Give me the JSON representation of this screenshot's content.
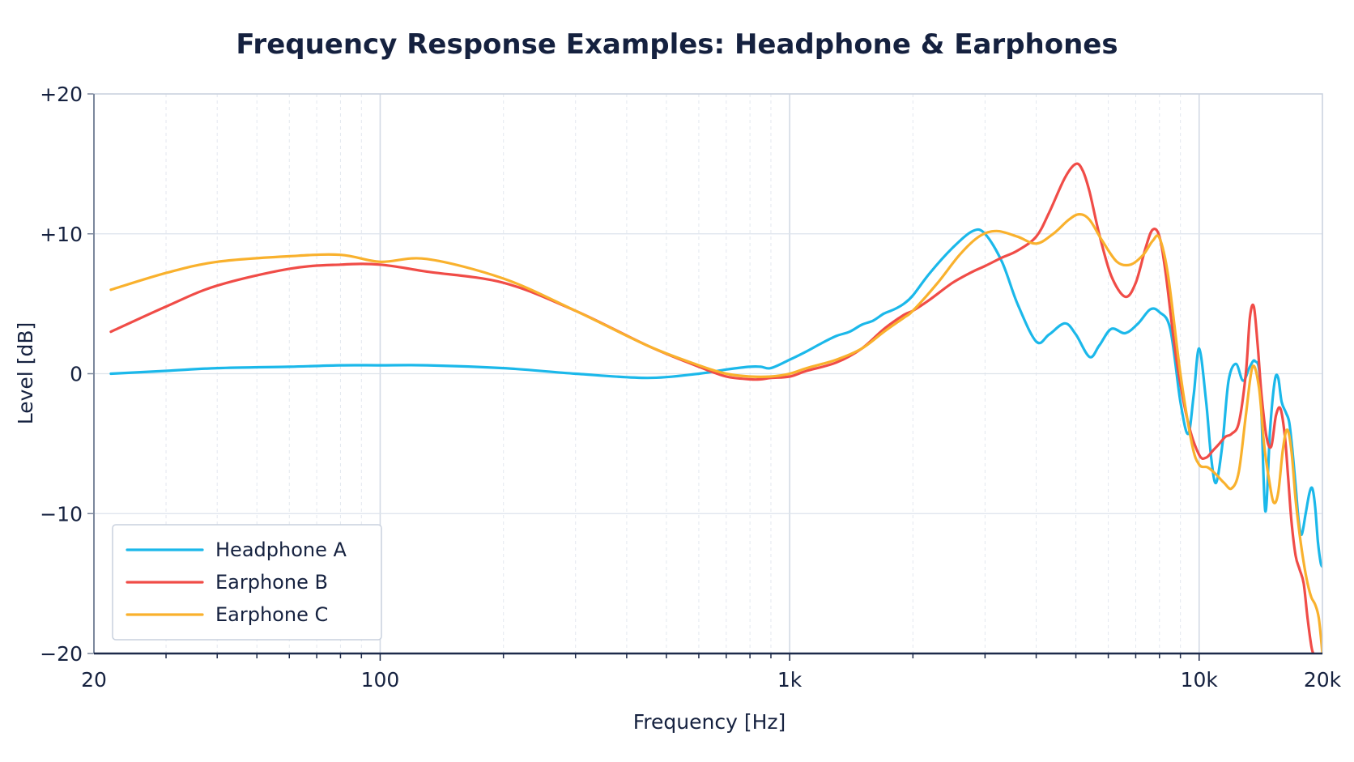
{
  "chart_data": {
    "type": "line",
    "title": "Frequency Response Examples: Headphone & Earphones",
    "xlabel": "Frequency [Hz]",
    "ylabel": "Level [dB]",
    "xscale": "log",
    "xlim": [
      20,
      20000
    ],
    "ylim": [
      -20,
      20
    ],
    "x_ticks": [
      {
        "value": 20,
        "label": "20"
      },
      {
        "value": 100,
        "label": "100"
      },
      {
        "value": 1000,
        "label": "1k"
      },
      {
        "value": 10000,
        "label": "10k"
      },
      {
        "value": 20000,
        "label": "20k"
      }
    ],
    "y_ticks": [
      {
        "value": 20,
        "label": "+20"
      },
      {
        "value": 10,
        "label": "+10"
      },
      {
        "value": 0,
        "label": "0"
      },
      {
        "value": -10,
        "label": "−10"
      },
      {
        "value": -20,
        "label": "−20"
      }
    ],
    "grid": true,
    "legend_position": "bottom-left",
    "series": [
      {
        "name": "Headphone A",
        "color": "#1bb8ea",
        "x": [
          22,
          30,
          40,
          60,
          80,
          100,
          130,
          200,
          300,
          450,
          600,
          700,
          800,
          850,
          900,
          1000,
          1100,
          1200,
          1300,
          1400,
          1500,
          1600,
          1700,
          1800,
          1900,
          2000,
          2200,
          2500,
          2800,
          3000,
          3300,
          3600,
          4000,
          4300,
          4700,
          5000,
          5400,
          5700,
          6100,
          6600,
          7100,
          7600,
          8000,
          8500,
          9000,
          9400,
          9700,
          10000,
          10400,
          10700,
          11000,
          11400,
          11800,
          12300,
          12800,
          13300,
          13700,
          14100,
          14500,
          14900,
          15300,
          15600,
          15900,
          16300,
          16600,
          16900,
          17200,
          17500,
          17800,
          18200,
          18600,
          18900,
          19200,
          19500,
          19800,
          20000
        ],
        "y": [
          0.0,
          0.2,
          0.4,
          0.5,
          0.6,
          0.6,
          0.6,
          0.4,
          0.0,
          -0.3,
          0.0,
          0.3,
          0.5,
          0.5,
          0.4,
          1.0,
          1.6,
          2.2,
          2.7,
          3.0,
          3.5,
          3.8,
          4.3,
          4.6,
          5.0,
          5.6,
          7.2,
          9.0,
          10.2,
          10.0,
          8.0,
          5.0,
          2.3,
          2.8,
          3.6,
          2.8,
          1.2,
          2.0,
          3.2,
          2.9,
          3.6,
          4.6,
          4.4,
          3.2,
          -2.0,
          -4.3,
          -1.5,
          1.8,
          -2.0,
          -6.0,
          -7.8,
          -5.0,
          -0.5,
          0.7,
          -0.5,
          0.5,
          0.9,
          -0.6,
          -9.8,
          -4.0,
          -0.5,
          -0.3,
          -2.0,
          -2.8,
          -3.5,
          -5.5,
          -8.0,
          -10.5,
          -11.5,
          -10.0,
          -8.5,
          -8.2,
          -9.5,
          -12.0,
          -13.5,
          -13.8
        ]
      },
      {
        "name": "Earphone B",
        "color": "#f04c47",
        "x": [
          22,
          30,
          40,
          60,
          80,
          100,
          130,
          200,
          300,
          450,
          600,
          700,
          800,
          850,
          900,
          1000,
          1100,
          1300,
          1500,
          1700,
          1900,
          2000,
          2200,
          2500,
          2800,
          3000,
          3300,
          3600,
          4000,
          4300,
          4700,
          5000,
          5200,
          5400,
          5700,
          6100,
          6600,
          7000,
          7400,
          7700,
          8000,
          8300,
          8800,
          9400,
          10000,
          10400,
          10800,
          11200,
          11600,
          12000,
          12500,
          13000,
          13300,
          13600,
          13900,
          14200,
          14600,
          15000,
          15400,
          15800,
          16200,
          16500,
          16800,
          17200,
          17600,
          18000,
          18400,
          18800,
          19000
        ],
        "y": [
          3.0,
          4.8,
          6.3,
          7.5,
          7.8,
          7.8,
          7.3,
          6.5,
          4.5,
          2.0,
          0.5,
          -0.2,
          -0.4,
          -0.4,
          -0.3,
          -0.2,
          0.2,
          0.8,
          1.8,
          3.2,
          4.2,
          4.5,
          5.3,
          6.5,
          7.3,
          7.7,
          8.3,
          8.8,
          9.8,
          11.5,
          14.0,
          15.0,
          14.5,
          13.0,
          10.0,
          7.0,
          5.5,
          6.5,
          9.0,
          10.3,
          9.8,
          7.0,
          1.0,
          -3.5,
          -5.8,
          -6.0,
          -5.5,
          -5.0,
          -4.5,
          -4.3,
          -3.5,
          0.0,
          4.0,
          4.8,
          2.0,
          -1.5,
          -4.5,
          -5.2,
          -3.0,
          -2.5,
          -4.5,
          -7.5,
          -10.5,
          -13.0,
          -14.0,
          -15.0,
          -17.5,
          -19.5,
          -20.0
        ]
      },
      {
        "name": "Earphone C",
        "color": "#f9b12d",
        "x": [
          22,
          30,
          40,
          60,
          80,
          100,
          130,
          200,
          300,
          450,
          600,
          700,
          800,
          900,
          1000,
          1100,
          1300,
          1500,
          1700,
          1900,
          2000,
          2300,
          2600,
          2900,
          3200,
          3600,
          4000,
          4400,
          4800,
          5100,
          5400,
          5800,
          6300,
          6800,
          7300,
          7700,
          8000,
          8400,
          9000,
          9600,
          10000,
          10500,
          11000,
          11500,
          12000,
          12500,
          13000,
          13500,
          14000,
          14400,
          14800,
          15200,
          15600,
          16000,
          16400,
          16800,
          17200,
          17600,
          18000,
          18400,
          18800,
          19200,
          19600,
          20000
        ],
        "y": [
          6.0,
          7.2,
          8.0,
          8.4,
          8.5,
          8.0,
          8.2,
          6.8,
          4.5,
          2.0,
          0.6,
          0.0,
          -0.2,
          -0.2,
          0.0,
          0.4,
          1.0,
          1.8,
          3.0,
          4.0,
          4.5,
          6.5,
          8.5,
          9.8,
          10.2,
          9.8,
          9.3,
          10.0,
          11.0,
          11.4,
          11.0,
          9.5,
          8.0,
          7.8,
          8.5,
          9.5,
          9.7,
          7.0,
          0.0,
          -5.0,
          -6.5,
          -6.7,
          -7.2,
          -7.8,
          -8.2,
          -7.0,
          -3.0,
          0.5,
          -1.0,
          -5.0,
          -7.5,
          -9.2,
          -8.5,
          -5.5,
          -4.0,
          -5.5,
          -9.0,
          -11.5,
          -13.5,
          -15.0,
          -16.0,
          -16.5,
          -17.5,
          -20.0
        ]
      }
    ]
  }
}
